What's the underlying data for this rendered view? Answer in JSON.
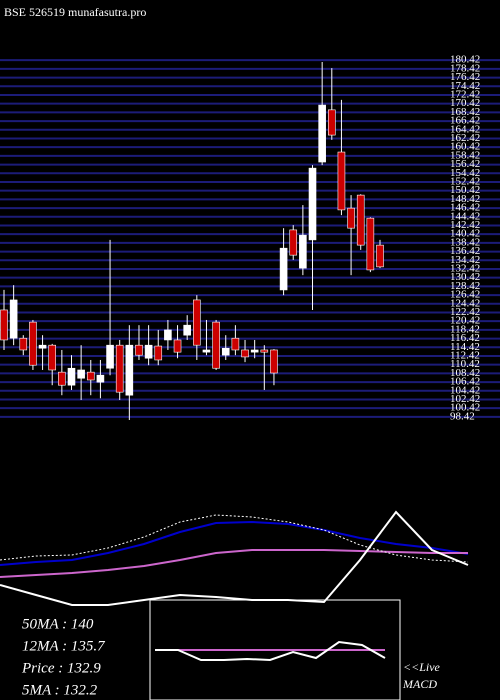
{
  "chart_data": [
    {
      "type": "candlestick",
      "title": "BSE 526519 munafasutra.pro",
      "open": [
        123.0,
        116.5,
        116.5,
        120.2,
        114.2,
        114.9,
        108.7,
        105.7,
        107.3,
        108.7,
        106.4,
        109.6,
        114.9,
        103.4,
        114.9,
        111.9,
        114.7,
        116.1,
        116.1,
        117.2,
        125.3,
        113.3,
        120.2,
        112.6,
        116.5,
        113.8,
        113.3,
        113.8,
        113.8,
        127.6,
        141.4,
        132.6,
        139.1,
        157.0,
        169.0,
        159.3,
        146.4,
        149.4,
        144.1,
        137.9
      ],
      "high": [
        127.6,
        128.7,
        117.2,
        120.7,
        117.2,
        115.2,
        113.8,
        112.6,
        114.9,
        111.5,
        111.5,
        139.1,
        116.1,
        119.5,
        119.5,
        119.5,
        118.4,
        120.7,
        119.5,
        121.8,
        126.4,
        120.7,
        120.7,
        117.2,
        119.5,
        116.1,
        116.1,
        114.9,
        114.0,
        141.8,
        142.5,
        147.1,
        156.3,
        180.0,
        178.6,
        171.3,
        149.4,
        149.6,
        144.3,
        139.1
      ],
      "low": [
        113.8,
        114.9,
        112.6,
        109.2,
        109.2,
        105.7,
        103.4,
        104.6,
        102.3,
        103.4,
        102.7,
        108.0,
        102.3,
        97.7,
        111.5,
        110.3,
        110.3,
        113.8,
        111.9,
        116.1,
        111.5,
        112.6,
        109.2,
        111.5,
        112.6,
        111.0,
        111.9,
        104.6,
        105.7,
        126.4,
        134.5,
        131.0,
        123.0,
        156.3,
        162.1,
        144.8,
        131.0,
        136.8,
        131.7,
        132.6
      ],
      "close": [
        116.1,
        125.3,
        113.8,
        110.3,
        114.9,
        109.2,
        105.7,
        109.6,
        109.2,
        106.9,
        108.0,
        114.9,
        104.1,
        114.9,
        112.6,
        114.9,
        111.5,
        118.4,
        113.3,
        119.5,
        114.9,
        113.8,
        109.6,
        114.2,
        113.8,
        112.2,
        113.8,
        113.3,
        108.5,
        137.2,
        135.6,
        140.2,
        155.6,
        170.1,
        163.2,
        146.0,
        141.8,
        137.9,
        132.2,
        132.9
      ],
      "up_color": "#ffffff",
      "down_color": "#cc0000",
      "grid_color": "#1c1c78",
      "ylim": [
        97.7,
        180
      ],
      "yticks": [
        180.42,
        178.42,
        176.42,
        174.42,
        172.42,
        170.42,
        168.42,
        166.42,
        164.42,
        162.42,
        160.42,
        158.42,
        156.42,
        154.42,
        152.42,
        150.42,
        148.42,
        146.42,
        144.42,
        142.42,
        140.42,
        138.42,
        136.42,
        134.42,
        132.42,
        130.42,
        128.42,
        126.42,
        124.42,
        122.42,
        120.42,
        118.42,
        116.42,
        114.42,
        112.42,
        110.42,
        108.42,
        106.42,
        104.42,
        102.42,
        100.42,
        98.42
      ],
      "grid": true
    },
    {
      "type": "line",
      "ylim": [
        0,
        160
      ],
      "series": [
        {
          "color": "#0000cc",
          "style": "solid",
          "values": [
            75,
            78,
            80,
            87,
            96,
            108,
            117,
            118,
            116,
            110,
            102,
            96,
            92,
            86
          ]
        },
        {
          "color": "#cc66cc",
          "style": "solid",
          "values": [
            63,
            65,
            67,
            70,
            74,
            80,
            87,
            90,
            90,
            90,
            89,
            88,
            87,
            87
          ]
        },
        {
          "color": "#ffffff",
          "style": "dotted",
          "values": [
            80,
            84,
            85,
            92,
            103,
            118,
            125,
            123,
            118,
            110,
            95,
            85,
            80,
            78
          ]
        },
        {
          "color": "#ffffff",
          "style": "solid",
          "values": [
            55,
            45,
            35,
            35,
            40,
            45,
            43,
            40,
            40,
            38,
            80,
            128,
            90,
            75
          ]
        }
      ],
      "stats": [
        "50MA : 140",
        "12MA : 135.7",
        "Price   : 132.9",
        "5MA : 132.2"
      ]
    },
    {
      "type": "line",
      "ylim": [
        0,
        100
      ],
      "annotation": [
        "<<Live",
        "MACD"
      ],
      "series": [
        {
          "color": "#cc66cc",
          "style": "solid",
          "values": [
            50,
            50,
            50,
            50,
            50,
            50,
            50,
            50,
            50,
            50,
            50
          ]
        },
        {
          "color": "#ffffff",
          "style": "solid",
          "values": [
            50,
            50,
            40,
            40,
            41,
            40,
            48,
            42,
            58,
            55,
            42
          ]
        }
      ]
    }
  ]
}
